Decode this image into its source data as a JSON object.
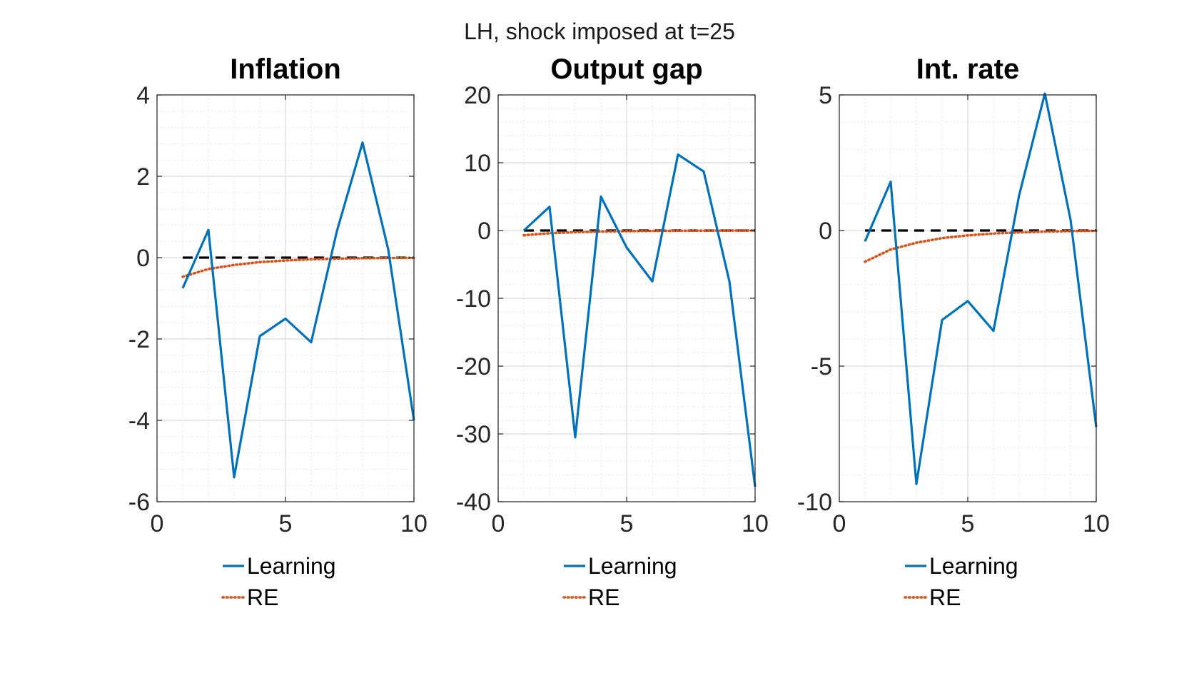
{
  "figure": {
    "title": "LH, shock imposed at t=25"
  },
  "colors": {
    "learning": "#0072BD",
    "re": "#D95319",
    "zero_line": "#000000",
    "grid_minor": "#e6e6e6",
    "grid_major": "#d9d9d9",
    "axes": "#262626"
  },
  "chart_data": [
    {
      "type": "line",
      "title": "Inflation",
      "xlim": [
        0,
        10
      ],
      "ylim": [
        -6,
        4
      ],
      "xticks": [
        0,
        5,
        10
      ],
      "yticks": [
        -6,
        -4,
        -2,
        0,
        2,
        4
      ],
      "ytick_labels": [
        "-6",
        "-4",
        "-2",
        "0",
        "2",
        "4"
      ],
      "grid": "on (major and minor)",
      "legend_placement": "below",
      "x": [
        1,
        2,
        3,
        4,
        5,
        6,
        7,
        8,
        9,
        10
      ],
      "series": [
        {
          "name": "Learning",
          "style": "solid",
          "values": [
            -0.75,
            0.68,
            -5.4,
            -1.93,
            -1.5,
            -2.08,
            0.65,
            2.83,
            0.2,
            -4.0
          ]
        },
        {
          "name": "RE",
          "style": "dotted",
          "values": [
            -0.47,
            -0.28,
            -0.18,
            -0.11,
            -0.07,
            -0.04,
            -0.025,
            -0.015,
            -0.01,
            -0.005
          ]
        },
        {
          "name": "",
          "style": "dashed",
          "values": [
            0,
            0,
            0,
            0,
            0,
            0,
            0,
            0,
            0,
            0
          ]
        }
      ]
    },
    {
      "type": "line",
      "title": "Output gap",
      "xlim": [
        0,
        10
      ],
      "ylim": [
        -40,
        20
      ],
      "xticks": [
        0,
        5,
        10
      ],
      "yticks": [
        -40,
        -30,
        -20,
        -10,
        0,
        10,
        20
      ],
      "ytick_labels": [
        "-40",
        "-30",
        "-20",
        "-10",
        "0",
        "10",
        "20"
      ],
      "grid": "on (major and minor)",
      "legend_placement": "below",
      "x": [
        1,
        2,
        3,
        4,
        5,
        6,
        7,
        8,
        9,
        10
      ],
      "series": [
        {
          "name": "Learning",
          "style": "solid",
          "values": [
            0,
            3.5,
            -30.5,
            5.0,
            -2.5,
            -7.5,
            11.2,
            8.7,
            -7.5,
            -37.8
          ]
        },
        {
          "name": "RE",
          "style": "dotted",
          "values": [
            -0.7,
            -0.4,
            -0.25,
            -0.15,
            -0.1,
            -0.06,
            -0.04,
            -0.02,
            -0.01,
            -0.005
          ]
        },
        {
          "name": "",
          "style": "dashed",
          "values": [
            0,
            0,
            0,
            0,
            0,
            0,
            0,
            0,
            0,
            0
          ]
        }
      ]
    },
    {
      "type": "line",
      "title": "Int. rate",
      "xlim": [
        0,
        10
      ],
      "ylim": [
        -10,
        5
      ],
      "xticks": [
        0,
        5,
        10
      ],
      "yticks": [
        -10,
        -5,
        0,
        5
      ],
      "ytick_labels": [
        "-10",
        "-5",
        "0",
        "5"
      ],
      "grid": "on (major and minor)",
      "legend_placement": "below",
      "x": [
        1,
        2,
        3,
        4,
        5,
        6,
        7,
        8,
        9,
        10
      ],
      "series": [
        {
          "name": "Learning",
          "style": "solid",
          "values": [
            -0.4,
            1.8,
            -9.35,
            -3.3,
            -2.6,
            -3.7,
            1.3,
            5.05,
            0.4,
            -7.25
          ]
        },
        {
          "name": "RE",
          "style": "dotted",
          "values": [
            -1.15,
            -0.7,
            -0.45,
            -0.28,
            -0.18,
            -0.11,
            -0.07,
            -0.04,
            -0.02,
            -0.01
          ]
        },
        {
          "name": "",
          "style": "dashed",
          "values": [
            0,
            0,
            0,
            0,
            0,
            0,
            0,
            0,
            0,
            0
          ]
        }
      ]
    }
  ]
}
